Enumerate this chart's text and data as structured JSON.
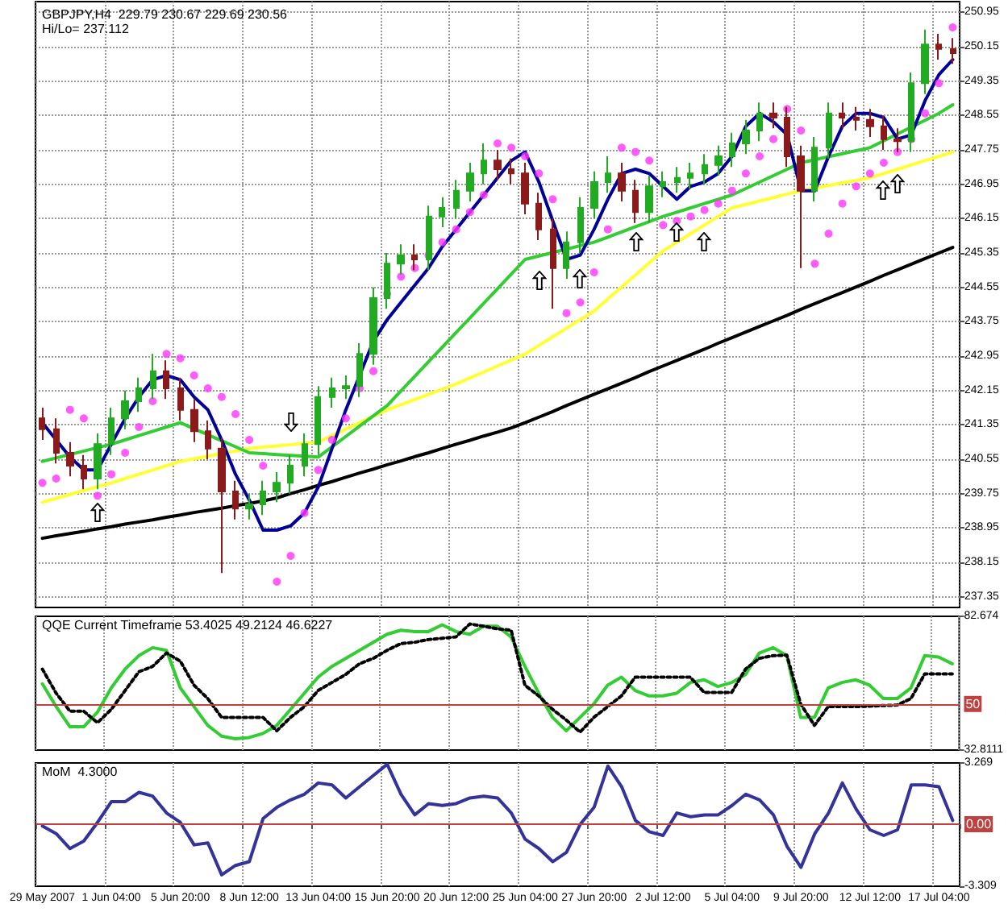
{
  "chart_data": [
    {
      "type": "candlestick",
      "title": "GBPJPY,H4  229.79 230.67 229.69 230.56",
      "subtitle": "Hi/Lo= 237.112",
      "tick_labels": "y",
      "grid": true,
      "categories": [
        null,
        null,
        null,
        null,
        null,
        null,
        null,
        null,
        null,
        null,
        null,
        null,
        null,
        null,
        null,
        null,
        null,
        null,
        null,
        null,
        null,
        null,
        null,
        null,
        null,
        null,
        null,
        null,
        null,
        null,
        null,
        null,
        null,
        null,
        null,
        null,
        null,
        null,
        null,
        null,
        null,
        null,
        null,
        null,
        null,
        null,
        null,
        null,
        null,
        null,
        null,
        null,
        null,
        null,
        null,
        null,
        null,
        null,
        null,
        null,
        null,
        null,
        null,
        null,
        null,
        null,
        null
      ],
      "ylim": [
        237.1,
        251.2
      ],
      "yticks": [
        237.35,
        238.15,
        238.95,
        239.75,
        240.55,
        241.35,
        242.15,
        242.95,
        243.75,
        244.55,
        245.35,
        246.15,
        246.95,
        247.75,
        248.55,
        249.35,
        250.15,
        250.95
      ],
      "ohlc": [
        [
          241.5,
          241.75,
          241.0,
          241.25
        ],
        [
          241.25,
          241.5,
          240.45,
          240.7
        ],
        [
          240.7,
          240.95,
          240.15,
          240.4
        ],
        [
          240.4,
          240.65,
          239.85,
          240.1
        ],
        [
          240.1,
          241.15,
          239.85,
          240.9
        ],
        [
          240.9,
          241.75,
          240.65,
          241.5
        ],
        [
          241.5,
          242.15,
          241.25,
          241.9
        ],
        [
          241.9,
          242.45,
          241.65,
          242.2
        ],
        [
          242.2,
          243.0,
          241.95,
          242.6
        ],
        [
          242.6,
          242.85,
          241.95,
          242.2
        ],
        [
          242.2,
          242.45,
          241.45,
          241.7
        ],
        [
          241.7,
          241.95,
          240.95,
          241.2
        ],
        [
          241.2,
          241.45,
          240.55,
          240.8
        ],
        [
          240.8,
          241.05,
          237.9,
          239.8
        ],
        [
          239.8,
          240.05,
          239.15,
          239.4
        ],
        [
          239.4,
          239.75,
          239.15,
          239.5
        ],
        [
          239.5,
          240.05,
          239.25,
          239.8
        ],
        [
          239.8,
          240.25,
          239.55,
          240.0
        ],
        [
          240.0,
          240.65,
          239.75,
          240.4
        ],
        [
          240.4,
          241.15,
          240.15,
          240.9
        ],
        [
          240.9,
          242.25,
          240.65,
          242.0
        ],
        [
          242.0,
          242.45,
          241.75,
          242.2
        ],
        [
          242.2,
          242.5,
          241.95,
          242.25
        ],
        [
          242.25,
          243.25,
          242.0,
          243.0
        ],
        [
          243.0,
          244.55,
          242.75,
          244.3
        ],
        [
          244.3,
          245.35,
          244.05,
          245.1
        ],
        [
          245.1,
          245.55,
          244.85,
          245.3
        ],
        [
          245.3,
          245.55,
          244.95,
          245.2
        ],
        [
          245.2,
          246.45,
          244.95,
          246.2
        ],
        [
          246.2,
          246.65,
          245.95,
          246.4
        ],
        [
          246.4,
          247.05,
          246.15,
          246.8
        ],
        [
          246.8,
          247.45,
          246.55,
          247.2
        ],
        [
          247.2,
          247.9,
          246.95,
          247.5
        ],
        [
          247.5,
          247.75,
          247.05,
          247.3
        ],
        [
          247.3,
          247.55,
          246.95,
          247.2
        ],
        [
          247.2,
          247.45,
          246.25,
          246.5
        ],
        [
          246.5,
          246.75,
          245.65,
          245.9
        ],
        [
          245.9,
          246.15,
          244.05,
          245.0
        ],
        [
          245.0,
          245.85,
          244.75,
          245.6
        ],
        [
          245.6,
          246.65,
          245.35,
          246.4
        ],
        [
          246.4,
          247.25,
          246.15,
          247.0
        ],
        [
          247.0,
          247.6,
          246.75,
          247.2
        ],
        [
          247.2,
          247.45,
          246.55,
          246.8
        ],
        [
          246.8,
          247.05,
          246.05,
          246.3
        ],
        [
          246.3,
          247.15,
          246.05,
          246.9
        ],
        [
          246.9,
          247.25,
          246.65,
          247.0
        ],
        [
          247.0,
          247.35,
          246.75,
          247.1
        ],
        [
          247.1,
          247.45,
          246.85,
          247.2
        ],
        [
          247.2,
          247.65,
          246.95,
          247.4
        ],
        [
          247.4,
          247.85,
          247.15,
          247.6
        ],
        [
          247.6,
          248.15,
          247.35,
          247.9
        ],
        [
          247.9,
          248.45,
          247.65,
          248.2
        ],
        [
          248.2,
          248.85,
          247.95,
          248.6
        ],
        [
          248.6,
          248.85,
          248.25,
          248.5
        ],
        [
          248.5,
          248.75,
          247.35,
          247.6
        ],
        [
          247.6,
          247.85,
          245.0,
          246.8
        ],
        [
          246.8,
          248.05,
          246.55,
          247.8
        ],
        [
          247.8,
          248.85,
          247.55,
          248.6
        ],
        [
          248.6,
          248.85,
          248.25,
          248.5
        ],
        [
          248.5,
          248.75,
          248.2,
          248.45
        ],
        [
          248.45,
          248.7,
          248.05,
          248.3
        ],
        [
          248.3,
          248.55,
          247.75,
          248.0
        ],
        [
          248.0,
          248.25,
          247.7,
          247.95
        ],
        [
          247.95,
          249.55,
          247.7,
          249.3
        ],
        [
          249.3,
          250.55,
          249.05,
          250.2
        ],
        [
          250.2,
          250.45,
          249.85,
          250.1
        ],
        [
          250.1,
          250.35,
          249.75,
          250.0
        ]
      ],
      "series": [
        {
          "type": "line",
          "color": "#000000",
          "values": [
            238.71,
            238.77,
            238.82,
            238.87,
            238.93,
            238.98,
            239.04,
            239.09,
            239.14,
            239.2,
            239.25,
            239.31,
            239.36,
            239.41,
            239.47,
            239.52,
            239.58,
            239.65,
            239.75,
            239.84,
            239.94,
            240.03,
            240.13,
            240.23,
            240.32,
            240.42,
            240.51,
            240.61,
            240.7,
            240.8,
            240.9,
            240.99,
            241.09,
            241.18,
            241.28,
            241.4,
            241.53,
            241.66,
            241.8,
            241.93,
            242.06,
            242.19,
            242.32,
            242.45,
            242.59,
            242.72,
            242.85,
            242.98,
            243.11,
            243.25,
            243.38,
            243.51,
            243.64,
            243.77,
            243.9,
            244.04,
            244.17,
            244.3,
            244.43,
            244.56,
            244.69,
            244.83,
            244.96,
            245.09,
            245.22,
            245.35,
            245.48
          ]
        },
        {
          "type": "line",
          "color": "#ffff33",
          "values": [
            239.55,
            239.64,
            239.73,
            239.82,
            239.91,
            240.0,
            240.1,
            240.2,
            240.3,
            240.4,
            240.5,
            240.56,
            240.62,
            240.68,
            240.74,
            240.8,
            240.83,
            240.86,
            240.89,
            240.92,
            240.95,
            241.1,
            241.25,
            241.4,
            241.55,
            241.7,
            241.82,
            241.94,
            242.06,
            242.18,
            242.3,
            242.44,
            242.58,
            242.72,
            242.86,
            243.0,
            243.2,
            243.4,
            243.6,
            243.8,
            244.0,
            244.28,
            244.56,
            244.84,
            245.12,
            245.4,
            245.6,
            245.8,
            246.0,
            246.2,
            246.4,
            246.48,
            246.56,
            246.64,
            246.72,
            246.8,
            246.86,
            246.92,
            246.98,
            247.04,
            247.1,
            247.2,
            247.3,
            247.4,
            247.5,
            247.6,
            247.7
          ]
        },
        {
          "type": "line",
          "color": "#33cc33",
          "values": [
            240.5,
            240.58,
            240.66,
            240.74,
            240.82,
            240.9,
            241.0,
            241.1,
            241.2,
            241.3,
            241.4,
            241.26,
            241.12,
            240.98,
            240.84,
            240.7,
            240.68,
            240.66,
            240.64,
            240.62,
            240.6,
            240.84,
            241.08,
            241.32,
            241.56,
            241.8,
            242.14,
            242.48,
            242.82,
            243.16,
            243.5,
            243.84,
            244.18,
            244.52,
            244.86,
            245.2,
            245.28,
            245.36,
            245.44,
            245.52,
            245.6,
            245.72,
            245.84,
            245.96,
            246.08,
            246.2,
            246.3,
            246.4,
            246.5,
            246.6,
            246.7,
            246.85,
            247.0,
            247.15,
            247.3,
            247.45,
            247.52,
            247.59,
            247.66,
            247.73,
            247.8,
            247.96,
            248.12,
            248.28,
            248.44,
            248.6,
            248.8
          ]
        },
        {
          "type": "line",
          "color": "#000099",
          "values": [
            241.4,
            241.0,
            240.6,
            240.3,
            240.3,
            240.9,
            241.5,
            242.0,
            242.4,
            242.5,
            242.4,
            242.0,
            241.7,
            241.0,
            240.2,
            239.6,
            238.9,
            238.9,
            239.0,
            239.3,
            239.9,
            240.8,
            241.7,
            242.5,
            243.3,
            243.8,
            244.2,
            244.6,
            245.0,
            245.5,
            245.9,
            246.3,
            246.7,
            247.1,
            247.5,
            247.7,
            247.0,
            246.1,
            245.2,
            245.3,
            245.9,
            246.6,
            247.2,
            247.3,
            247.2,
            246.9,
            246.6,
            246.9,
            247.0,
            247.2,
            247.6,
            248.3,
            248.6,
            248.4,
            248.1,
            246.8,
            246.8,
            247.6,
            248.3,
            248.6,
            248.6,
            248.5,
            248.0,
            248.1,
            248.9,
            249.5,
            249.85
          ]
        },
        {
          "type": "scatter",
          "color": "#ff33ff",
          "marker": "circle",
          "values": [
            240.0,
            240.1,
            241.7,
            241.5,
            239.7,
            240.2,
            240.7,
            241.3,
            241.9,
            243.0,
            242.9,
            242.5,
            242.2,
            242.0,
            241.6,
            241.0,
            240.4,
            237.7,
            238.3,
            239.3,
            240.3,
            241.0,
            241.5,
            242.2,
            242.6,
            244.4,
            244.8,
            245.0,
            245.3,
            245.6,
            245.9,
            246.3,
            246.7,
            247.9,
            247.8,
            247.6,
            247.2,
            246.6,
            243.95,
            244.2,
            244.9,
            245.9,
            247.8,
            247.7,
            247.5,
            246.0,
            246.1,
            246.2,
            246.35,
            246.5,
            246.8,
            247.2,
            247.6,
            248.0,
            248.7,
            248.2,
            245.1,
            245.8,
            246.5,
            246.9,
            247.2,
            247.45,
            247.7,
            248.0,
            248.6,
            249.3,
            250.6
          ]
        }
      ]
    },
    {
      "type": "line",
      "title": "QQE Current Timeframe 53.4025 49.2124 46.6227",
      "tick_labels": "y",
      "grid": "x",
      "categories": [
        null,
        null,
        null,
        null,
        null,
        null,
        null,
        null,
        null,
        null,
        null,
        null,
        null,
        null,
        null,
        null,
        null,
        null,
        null,
        null,
        null,
        null,
        null,
        null,
        null,
        null,
        null,
        null,
        null,
        null,
        null,
        null,
        null,
        null,
        null,
        null,
        null,
        null,
        null,
        null,
        null,
        null,
        null,
        null,
        null,
        null,
        null,
        null,
        null,
        null,
        null,
        null,
        null,
        null,
        null,
        null,
        null,
        null,
        null,
        null,
        null,
        null,
        null,
        null,
        null,
        null,
        null
      ],
      "ylim": [
        32.8111,
        82.674
      ],
      "yticks": [
        32.8111,
        82.674
      ],
      "ref_lines": [
        {
          "axis": "y",
          "value": 50,
          "label": "50",
          "color": "#c04040"
        }
      ],
      "series": [
        {
          "color": "#33cc33",
          "values": [
            57.5,
            49,
            41.5,
            41.5,
            47,
            56,
            63,
            68,
            71,
            70,
            56,
            49,
            42,
            38,
            37,
            37.5,
            39,
            42,
            48,
            54,
            60,
            64,
            67,
            70,
            73,
            76,
            77.5,
            77,
            77,
            79.5,
            77,
            76,
            79,
            79,
            75,
            64,
            54,
            45,
            40,
            45,
            50,
            57,
            60,
            55,
            53,
            53,
            54,
            58,
            59,
            56.5,
            58,
            61,
            69,
            71,
            68,
            45,
            45,
            56,
            58,
            59,
            57,
            52,
            52,
            56,
            68,
            67.5,
            65
          ]
        },
        {
          "color": "#000000",
          "line_style": "dotted",
          "values": [
            63,
            54,
            47.3,
            47.3,
            43,
            48,
            55,
            62,
            64,
            69,
            66,
            57,
            52,
            45,
            45,
            45,
            45,
            40,
            45,
            49,
            55,
            58,
            61,
            65,
            67,
            70,
            72.5,
            73,
            74,
            74.5,
            75,
            79.8,
            79,
            78,
            77.5,
            57,
            53,
            48,
            44,
            39.5,
            45,
            49,
            53,
            60,
            60,
            60,
            60,
            60,
            54.3,
            54.3,
            54.3,
            63,
            67,
            68,
            68.2,
            50,
            42,
            49,
            49,
            49,
            49.2,
            49.4,
            49.6,
            52,
            61.2,
            61.2,
            61.2
          ]
        }
      ]
    },
    {
      "type": "line",
      "title": "MoM  4.3000",
      "grid": "x",
      "categories": [
        "29 May 2007",
        null,
        null,
        null,
        null,
        "1 Jun 04:00",
        null,
        null,
        null,
        null,
        "5 Jun 20:00",
        null,
        null,
        null,
        null,
        "8 Jun 12:00",
        null,
        null,
        null,
        null,
        "13 Jun 04:00",
        null,
        null,
        null,
        null,
        "15 Jun 20:00",
        null,
        null,
        null,
        null,
        "20 Jun 12:00",
        null,
        null,
        null,
        null,
        "25 Jun 04:00",
        null,
        null,
        null,
        null,
        "27 Jun 20:00",
        null,
        null,
        null,
        null,
        "2 Jul 12:00",
        null,
        null,
        null,
        null,
        "5 Jul 04:00",
        null,
        null,
        null,
        null,
        "9 Jul 20:00",
        null,
        null,
        null,
        null,
        "12 Jul 12:00",
        null,
        null,
        null,
        null,
        "17 Jul 04:00",
        null
      ],
      "ylim": [
        -3.309,
        3.269
      ],
      "yticks": [
        -3.309,
        3.269
      ],
      "ref_lines": [
        {
          "axis": "y",
          "value": 0,
          "label": "0.00",
          "color": "#c04040"
        }
      ],
      "series": [
        {
          "color": "#333399",
          "values": [
            -0.1,
            -0.5,
            -1.3,
            -0.9,
            0.1,
            1.2,
            1.2,
            1.7,
            1.5,
            0.6,
            0.1,
            -1.1,
            -1.0,
            -2.7,
            -2.2,
            -2.0,
            0.3,
            0.9,
            1.3,
            1.6,
            2.2,
            2.1,
            1.4,
            2.0,
            2.6,
            3.2,
            1.6,
            0.5,
            1.1,
            1.0,
            1.1,
            1.4,
            1.5,
            1.4,
            0.6,
            -0.8,
            -1.3,
            -2.0,
            -1.5,
            0.0,
            0.9,
            3.1,
            2.0,
            0.2,
            -0.4,
            -0.6,
            0.6,
            0.4,
            0.5,
            0.5,
            1.0,
            1.6,
            1.3,
            0.5,
            -1.2,
            -2.3,
            -0.5,
            0.6,
            2.2,
            0.8,
            -0.3,
            -0.6,
            -0.3,
            2.1,
            2.1,
            2.0,
            0.2
          ]
        }
      ]
    }
  ]
}
